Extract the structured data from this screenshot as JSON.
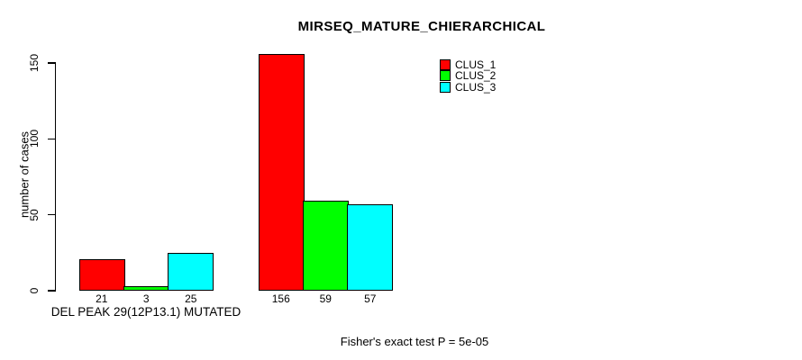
{
  "chart_data": {
    "type": "bar",
    "title": "MIRSEQ_MATURE_CHIERARCHICAL",
    "ylabel": "number of cases",
    "xlabel": "",
    "ylim": [
      0,
      150
    ],
    "yticks": [
      "0",
      "50",
      "100",
      "150"
    ],
    "ytick_values": [
      0,
      50,
      100,
      150
    ],
    "grid": false,
    "legend_position": "top-right-inside",
    "categories": [
      "DEL PEAK 29(12P13.1) MUTATED",
      ""
    ],
    "series": [
      {
        "name": "CLUS_1",
        "color": "#ff0000",
        "values": [
          21,
          156
        ]
      },
      {
        "name": "CLUS_2",
        "color": "#00ff00",
        "values": [
          3,
          59
        ]
      },
      {
        "name": "CLUS_3",
        "color": "#00ffff",
        "values": [
          25,
          57
        ]
      }
    ],
    "bar_value_labels": [
      [
        "21",
        "3",
        "25"
      ],
      [
        "156",
        "59",
        "57"
      ]
    ],
    "footnote": "Fisher's exact test P = 5e-05",
    "colors": {
      "background": "#ffffff",
      "axis": "#000000",
      "text": "#000000"
    }
  }
}
